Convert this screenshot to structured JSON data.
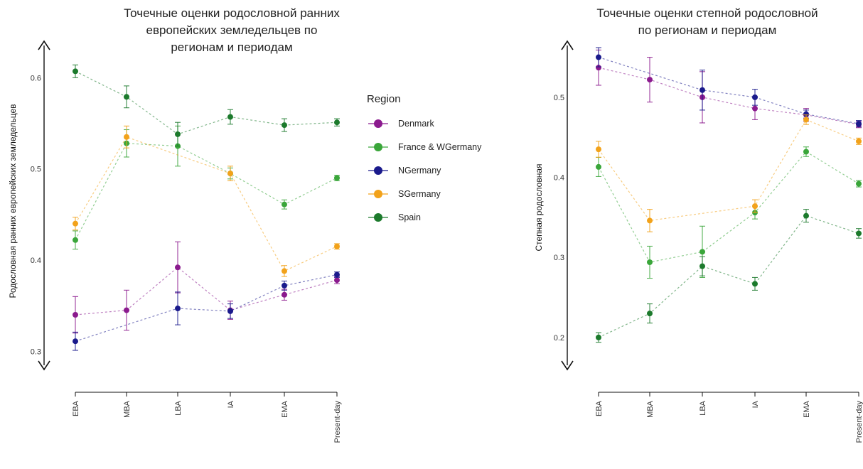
{
  "chart_data": [
    {
      "type": "line",
      "title_lines": [
        "Точечные оценки родословной ранних",
        "европейских земледельцев по",
        "регионам и периодам"
      ],
      "ylabel": "Родословная ранних европейских земледельцев",
      "xlabel": "",
      "categories": [
        "EBA",
        "MBA",
        "LBA",
        "IA",
        "EMA",
        "Present-day"
      ],
      "ylim": [
        0.28,
        0.64
      ],
      "yticks": [
        "0.3",
        "0.4",
        "0.5",
        "0.6"
      ],
      "series": [
        {
          "name": "Denmark",
          "color": "#8b1a8e",
          "values": [
            0.34,
            0.345,
            0.392,
            0.345,
            0.362,
            0.378
          ],
          "errors": [
            0.02,
            0.022,
            0.028,
            0.01,
            0.006,
            0.004
          ]
        },
        {
          "name": "France & WGermany",
          "color": "#3aa63a",
          "values": [
            0.422,
            0.528,
            0.525,
            0.495,
            0.461,
            0.49
          ],
          "errors": [
            0.01,
            0.015,
            0.022,
            0.006,
            0.005,
            0.003
          ]
        },
        {
          "name": "NGermany",
          "color": "#1a1a8c",
          "values": [
            0.311,
            null,
            0.347,
            0.344,
            0.372,
            0.384
          ],
          "errors": [
            0.01,
            null,
            0.018,
            0.008,
            0.005,
            0.003
          ]
        },
        {
          "name": "SGermany",
          "color": "#f2a21a",
          "values": [
            0.44,
            0.535,
            null,
            0.495,
            0.388,
            0.415
          ],
          "errors": [
            0.007,
            0.012,
            null,
            0.008,
            0.006,
            0.003
          ]
        },
        {
          "name": "Spain",
          "color": "#1c7a2c",
          "values": [
            0.607,
            0.579,
            0.538,
            0.557,
            0.548,
            0.551
          ],
          "errors": [
            0.007,
            0.012,
            0.013,
            0.008,
            0.007,
            0.004
          ]
        }
      ]
    },
    {
      "type": "line",
      "title_lines": [
        "Точечные оценки степной родословной",
        "по регионам и периодам"
      ],
      "ylabel": "Степная родословная",
      "xlabel": "",
      "categories": [
        "EBA",
        "MBA",
        "LBA",
        "IA",
        "EMA",
        "Present-day"
      ],
      "ylim": [
        0.16,
        0.57
      ],
      "yticks": [
        "0.2",
        "0.3",
        "0.4",
        "0.5"
      ],
      "series": [
        {
          "name": "Denmark",
          "color": "#8b1a8e",
          "values": [
            0.537,
            0.522,
            0.5,
            0.486,
            0.478,
            0.466
          ],
          "errors": [
            0.022,
            0.028,
            0.032,
            0.014,
            0.008,
            0.004
          ]
        },
        {
          "name": "France & WGermany",
          "color": "#3aa63a",
          "values": [
            0.413,
            0.294,
            0.307,
            0.356,
            0.432,
            0.392
          ],
          "errors": [
            0.012,
            0.02,
            0.032,
            0.008,
            0.006,
            0.004
          ]
        },
        {
          "name": "NGermany",
          "color": "#1a1a8c",
          "values": [
            0.55,
            null,
            0.509,
            0.5,
            0.479,
            0.467
          ],
          "errors": [
            0.012,
            null,
            0.025,
            0.01,
            0.005,
            0.004
          ]
        },
        {
          "name": "SGermany",
          "color": "#f2a21a",
          "values": [
            0.435,
            0.346,
            null,
            0.364,
            0.472,
            0.445
          ],
          "errors": [
            0.01,
            0.014,
            null,
            0.008,
            0.006,
            0.004
          ]
        },
        {
          "name": "Spain",
          "color": "#1c7a2c",
          "values": [
            0.2,
            0.23,
            0.289,
            0.267,
            0.352,
            0.33
          ],
          "errors": [
            0.006,
            0.012,
            0.012,
            0.008,
            0.008,
            0.006
          ]
        }
      ]
    }
  ],
  "legend": {
    "title": "Region",
    "items": [
      {
        "label": "Denmark",
        "color": "#8b1a8e"
      },
      {
        "label": "France & WGermany",
        "color": "#3aa63a"
      },
      {
        "label": "NGermany",
        "color": "#1a1a8c"
      },
      {
        "label": "SGermany",
        "color": "#f2a21a"
      },
      {
        "label": "Spain",
        "color": "#1c7a2c"
      }
    ]
  }
}
